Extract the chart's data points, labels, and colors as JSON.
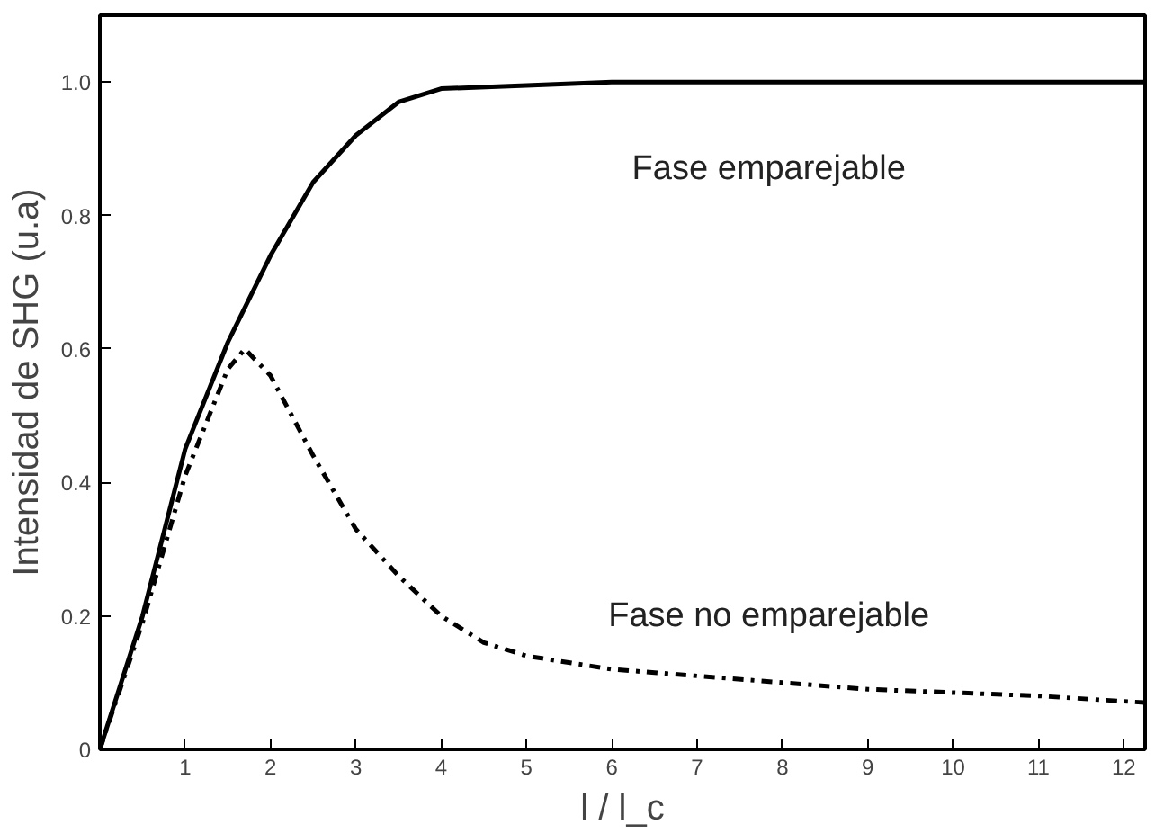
{
  "chart_data": {
    "type": "line",
    "xlabel": "l / l_c",
    "ylabel": "Intensidad de SHG (u.a)",
    "xlim": [
      0,
      12.25
    ],
    "ylim": [
      0,
      1.1
    ],
    "xticks": [
      1,
      2,
      3,
      4,
      5,
      6,
      7,
      8,
      9,
      10,
      11,
      12
    ],
    "yticks": [
      0,
      0.2,
      0.4,
      {
        "value": 0.6,
        "label": "0.6"
      },
      0.8,
      {
        "value": 1,
        "label": "1.0"
      }
    ],
    "grid": false,
    "legend": false,
    "series": [
      {
        "name": "Fase emparejable",
        "color": "#000000",
        "line_style": "solid",
        "x": [
          0,
          0.5,
          1,
          1.5,
          2,
          2.5,
          3,
          3.5,
          4,
          5,
          6,
          8,
          10,
          12.25
        ],
        "values": [
          0,
          0.2,
          0.45,
          0.61,
          0.74,
          0.85,
          0.92,
          0.97,
          0.99,
          0.995,
          1.0,
          1.0,
          1.0,
          1.0
        ]
      },
      {
        "name": "Fase no emparejable",
        "color": "#000000",
        "line_style": "dashdot",
        "x": [
          0,
          0.5,
          1,
          1.5,
          1.7,
          2,
          2.5,
          3,
          3.5,
          4,
          4.5,
          5,
          6,
          7,
          8,
          9,
          10,
          11,
          12.25
        ],
        "values": [
          0,
          0.19,
          0.41,
          0.57,
          0.6,
          0.56,
          0.44,
          0.33,
          0.26,
          0.2,
          0.16,
          0.14,
          0.12,
          0.11,
          0.1,
          0.09,
          0.085,
          0.08,
          0.07
        ]
      }
    ]
  }
}
